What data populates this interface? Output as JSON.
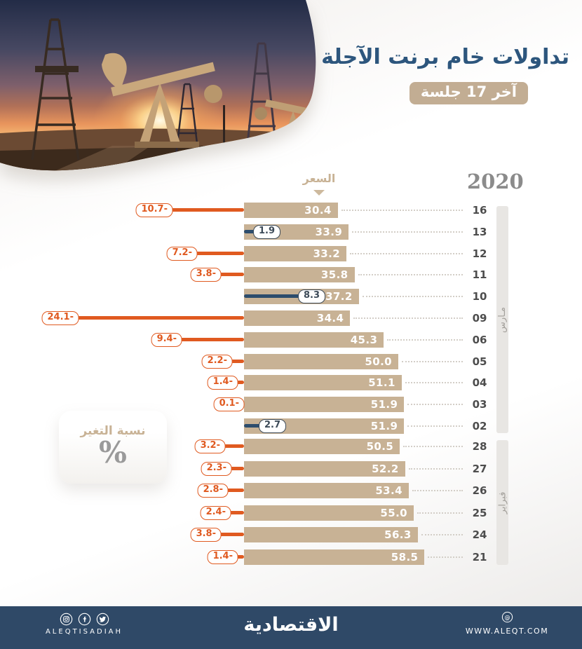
{
  "header": {
    "title": "تداولات خام برنت الآجلة",
    "subtitle_badge": "آخر 17 جلسة"
  },
  "chart_data": {
    "type": "bar",
    "orientation": "horizontal",
    "year": "2020",
    "price_axis_label": "السعر",
    "change_legend": {
      "label": "نسبة التغير",
      "unit": "%"
    },
    "months": [
      {
        "name": "مـارس",
        "row_count": 11
      },
      {
        "name": "فبراير",
        "row_count": 6
      }
    ],
    "colors": {
      "bar": "#c8b295",
      "negative": "#e05a20",
      "positive_line": "#2d4d6d",
      "positive_pill": "#3d4b59"
    },
    "rows": [
      {
        "day": "16",
        "price": 30.4,
        "price_label": "30.4",
        "change": -10.7,
        "change_label": "10.7-"
      },
      {
        "day": "13",
        "price": 33.9,
        "price_label": "33.9",
        "change": 1.9,
        "change_label": "1.9"
      },
      {
        "day": "12",
        "price": 33.2,
        "price_label": "33.2",
        "change": -7.2,
        "change_label": "7.2-"
      },
      {
        "day": "11",
        "price": 35.8,
        "price_label": "35.8",
        "change": -3.8,
        "change_label": "3.8-"
      },
      {
        "day": "10",
        "price": 37.2,
        "price_label": "37.2",
        "change": 8.3,
        "change_label": "8.3"
      },
      {
        "day": "09",
        "price": 34.4,
        "price_label": "34.4",
        "change": -24.1,
        "change_label": "24.1-"
      },
      {
        "day": "06",
        "price": 45.3,
        "price_label": "45.3",
        "change": -9.4,
        "change_label": "9.4-"
      },
      {
        "day": "05",
        "price": 50.0,
        "price_label": "50.0",
        "change": -2.2,
        "change_label": "2.2-"
      },
      {
        "day": "04",
        "price": 51.1,
        "price_label": "51.1",
        "change": -1.4,
        "change_label": "1.4-"
      },
      {
        "day": "03",
        "price": 51.9,
        "price_label": "51.9",
        "change": -0.1,
        "change_label": "0.1-"
      },
      {
        "day": "02",
        "price": 51.9,
        "price_label": "51.9",
        "change": 2.7,
        "change_label": "2.7"
      },
      {
        "day": "28",
        "price": 50.5,
        "price_label": "50.5",
        "change": -3.2,
        "change_label": "3.2-"
      },
      {
        "day": "27",
        "price": 52.2,
        "price_label": "52.2",
        "change": -2.3,
        "change_label": "2.3-"
      },
      {
        "day": "26",
        "price": 53.4,
        "price_label": "53.4",
        "change": -2.8,
        "change_label": "2.8-"
      },
      {
        "day": "25",
        "price": 55.0,
        "price_label": "55.0",
        "change": -2.4,
        "change_label": "2.4-"
      },
      {
        "day": "24",
        "price": 56.3,
        "price_label": "56.3",
        "change": -3.8,
        "change_label": "3.8-"
      },
      {
        "day": "21",
        "price": 58.5,
        "price_label": "58.5",
        "change": -1.4,
        "change_label": "1.4-"
      }
    ]
  },
  "footer": {
    "social_handle": "ALEQTISADIAH",
    "brand": "الاقتصادية",
    "website": "WWW.ALEQT.COM"
  }
}
